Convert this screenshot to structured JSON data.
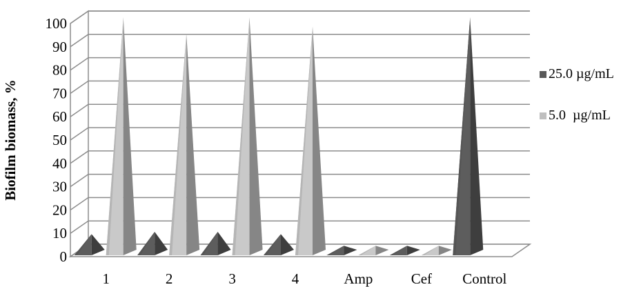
{
  "chart_data": {
    "type": "bar",
    "style": "3d-cone",
    "categories": [
      "1",
      "2",
      "3",
      "4",
      "Amp",
      "Cef",
      "Control"
    ],
    "series": [
      {
        "name": "25.0 µg/mL",
        "color": "#595959",
        "values": [
          7,
          8,
          8,
          7,
          2,
          2,
          100
        ]
      },
      {
        "name": "5.0  µg/mL",
        "color": "#bfbfbf",
        "values": [
          100,
          93,
          100,
          96,
          2,
          2,
          null
        ]
      }
    ],
    "ylabel": "Biofilm biomass, %",
    "xlabel": "",
    "ylim": [
      0,
      100
    ],
    "yticks": [
      0,
      10,
      20,
      30,
      40,
      50,
      60,
      70,
      80,
      90,
      100
    ],
    "grid": true,
    "legend_position": "right"
  }
}
